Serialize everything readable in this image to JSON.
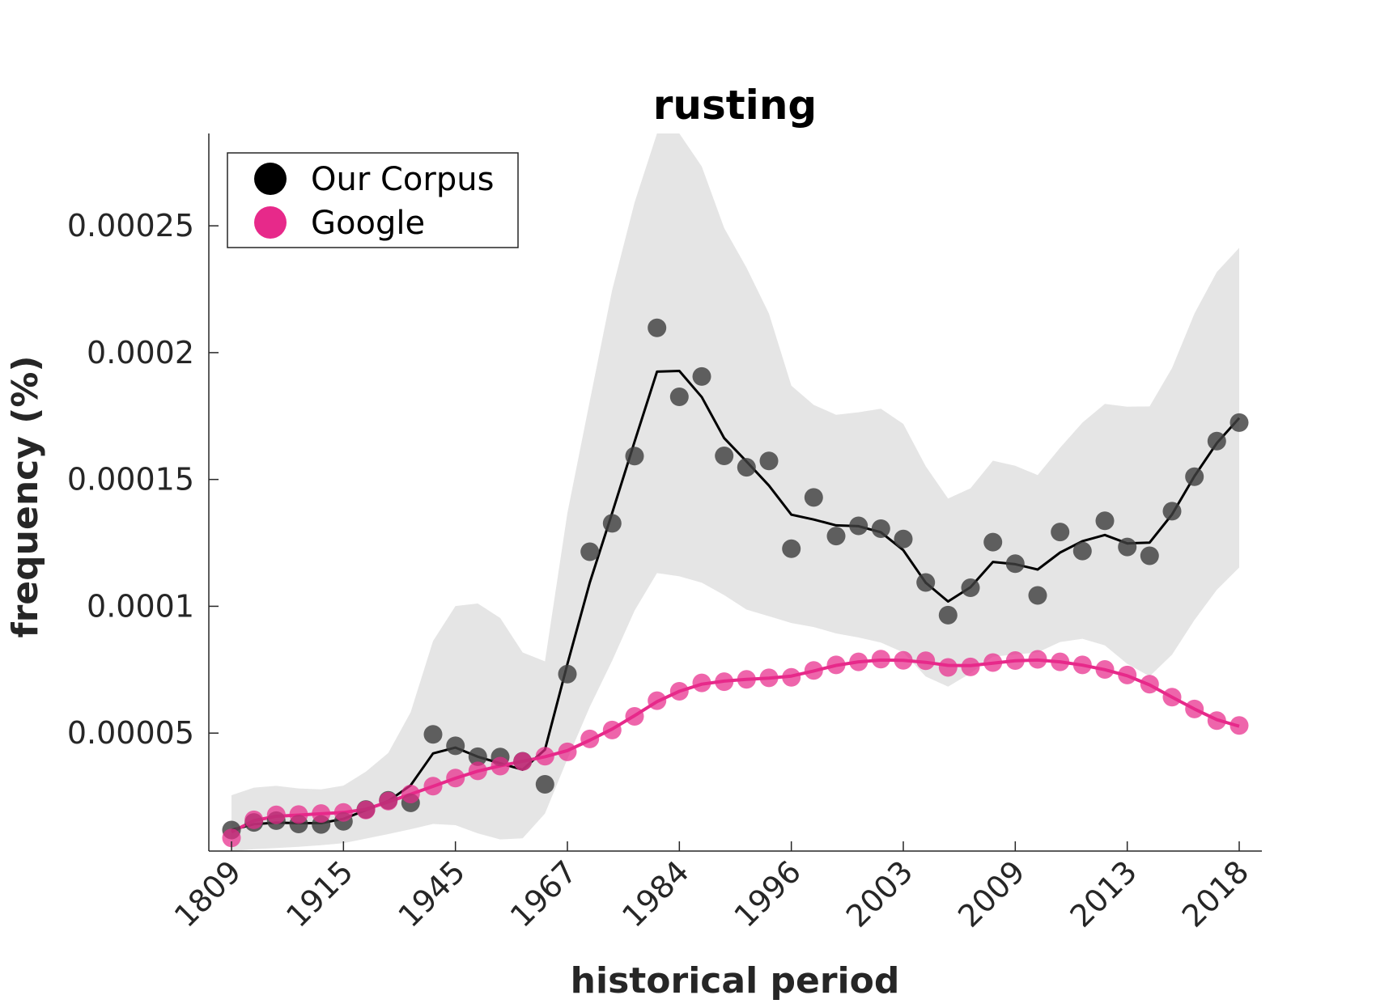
{
  "chart_data": {
    "type": "scatter",
    "title": "rusting",
    "xlabel": "historical period",
    "ylabel": "frequency (%)",
    "x_tick_labels": [
      "1809",
      "1915",
      "1945",
      "1967",
      "1984",
      "1996",
      "2003",
      "2009",
      "2013",
      "2018"
    ],
    "y_ticks": [
      5e-05,
      0.0001,
      0.00015,
      0.0002,
      0.00025
    ],
    "y_tick_labels": [
      "0.00005",
      "0.0001",
      "0.00015",
      "0.0002",
      "0.00025"
    ],
    "ylim": [
      3.5e-06,
      0.0002864
    ],
    "point_count": 46,
    "legend_position": "top-left",
    "grid": false,
    "series": [
      {
        "name": "Our Corpus",
        "color": "#000000",
        "marker_color": "#404040",
        "points": [
          1.18e-05,
          1.48e-05,
          1.55e-05,
          1.42e-05,
          1.4e-05,
          1.52e-05,
          1.99e-05,
          2.35e-05,
          2.25e-05,
          4.95e-05,
          4.5e-05,
          4.07e-05,
          4.06e-05,
          3.89e-05,
          2.98e-05,
          7.33e-05,
          0.0001215,
          0.0001327,
          0.0001592,
          0.0002098,
          0.0001826,
          0.0001906,
          0.0001593,
          0.0001548,
          0.0001573,
          0.0001227,
          0.0001429,
          0.0001277,
          0.0001317,
          0.0001306,
          0.0001265,
          0.0001094,
          9.65e-05,
          0.0001073,
          0.0001253,
          0.0001168,
          0.0001043,
          0.0001293,
          0.0001218,
          0.0001337,
          0.0001234,
          0.0001199,
          0.0001375,
          0.0001511,
          0.0001651,
          0.0001724
        ],
        "smoothed": [
          1.18e-05,
          1.41e-05,
          1.47e-05,
          1.45e-05,
          1.45e-05,
          1.62e-05,
          1.96e-05,
          2.32e-05,
          2.94e-05,
          4.2e-05,
          4.43e-05,
          4.07e-05,
          3.81e-05,
          3.56e-05,
          4.35e-05,
          7.72e-05,
          0.0001094,
          0.0001368,
          0.0001649,
          0.0001925,
          0.0001928,
          0.0001825,
          0.0001663,
          0.0001571,
          0.0001476,
          0.0001361,
          0.0001342,
          0.0001319,
          0.0001316,
          0.0001292,
          0.0001221,
          0.0001093,
          0.0001019,
          0.0001075,
          0.0001175,
          0.0001166,
          0.0001145,
          0.0001212,
          0.0001257,
          0.0001281,
          0.0001248,
          0.0001251,
          0.0001362,
          0.0001513,
          0.0001643,
          0.0001742
        ],
        "band_upper": [
          2.55e-05,
          2.85e-05,
          2.92e-05,
          2.82e-05,
          2.78e-05,
          2.93e-05,
          3.48e-05,
          4.22e-05,
          5.82e-05,
          8.63e-05,
          0.0001001,
          0.0001011,
          9.54e-05,
          8.18e-05,
          7.83e-05,
          0.0001368,
          0.000181,
          0.0002247,
          0.0002592,
          0.0002864,
          0.0002864,
          0.0002734,
          0.0002491,
          0.0002335,
          0.0002154,
          0.000187,
          0.0001794,
          0.0001755,
          0.0001765,
          0.0001779,
          0.0001719,
          0.0001552,
          0.0001425,
          0.0001465,
          0.0001574,
          0.0001554,
          0.0001517,
          0.0001625,
          0.0001724,
          0.0001798,
          0.0001787,
          0.0001788,
          0.0001939,
          0.0002154,
          0.0002318,
          0.0002413
        ],
        "band_lower": [
          3.5e-06,
          4.2e-06,
          4.7e-06,
          5.2e-06,
          5.8e-06,
          6.6e-06,
          8.4e-06,
          1.02e-05,
          1.21e-05,
          1.42e-05,
          1.37e-05,
          1.05e-05,
          8.1e-06,
          8.5e-06,
          1.83e-05,
          3.98e-05,
          6.04e-05,
          7.85e-05,
          9.83e-05,
          0.0001131,
          0.0001118,
          0.0001093,
          0.0001044,
          9.87e-05,
          9.61e-05,
          9.34e-05,
          9.18e-05,
          8.93e-05,
          8.77e-05,
          8.57e-05,
          8.18e-05,
          7.23e-05,
          6.83e-05,
          7.36e-05,
          8.01e-05,
          8.1e-05,
          8.18e-05,
          8.59e-05,
          8.72e-05,
          8.46e-05,
          7.73e-05,
          7.24e-05,
          8.09e-05,
          9.46e-05,
          0.0001065,
          0.0001153
        ]
      },
      {
        "name": "Google",
        "color": "#e7298a",
        "marker_color": "#e7298a",
        "points": [
          8.7e-06,
          1.58e-05,
          1.78e-05,
          1.79e-05,
          1.83e-05,
          1.87e-05,
          1.97e-05,
          2.32e-05,
          2.6e-05,
          2.91e-05,
          3.23e-05,
          3.51e-05,
          3.7e-05,
          3.88e-05,
          4.09e-05,
          4.26e-05,
          4.77e-05,
          5.12e-05,
          5.66e-05,
          6.28e-05,
          6.65e-05,
          6.98e-05,
          7.03e-05,
          7.12e-05,
          7.18e-05,
          7.2e-05,
          7.47e-05,
          7.69e-05,
          7.81e-05,
          7.92e-05,
          7.87e-05,
          7.85e-05,
          7.59e-05,
          7.61e-05,
          7.78e-05,
          7.86e-05,
          7.91e-05,
          7.81e-05,
          7.69e-05,
          7.51e-05,
          7.29e-05,
          6.93e-05,
          6.42e-05,
          5.95e-05,
          5.49e-05,
          5.3e-05
        ],
        "smoothed": [
          1.1e-05,
          1.55e-05,
          1.72e-05,
          1.77e-05,
          1.82e-05,
          1.87e-05,
          2e-05,
          2.29e-05,
          2.59e-05,
          2.9e-05,
          3.22e-05,
          3.5e-05,
          3.71e-05,
          3.89e-05,
          4.07e-05,
          4.31e-05,
          4.72e-05,
          5.16e-05,
          5.69e-05,
          6.24e-05,
          6.65e-05,
          6.93e-05,
          7.05e-05,
          7.12e-05,
          7.17e-05,
          7.25e-05,
          7.45e-05,
          7.67e-05,
          7.81e-05,
          7.88e-05,
          7.87e-05,
          7.79e-05,
          7.67e-05,
          7.66e-05,
          7.76e-05,
          7.85e-05,
          7.88e-05,
          7.81e-05,
          7.68e-05,
          7.5e-05,
          7.26e-05,
          6.9e-05,
          6.42e-05,
          5.95e-05,
          5.53e-05,
          5.27e-05
        ]
      }
    ]
  }
}
